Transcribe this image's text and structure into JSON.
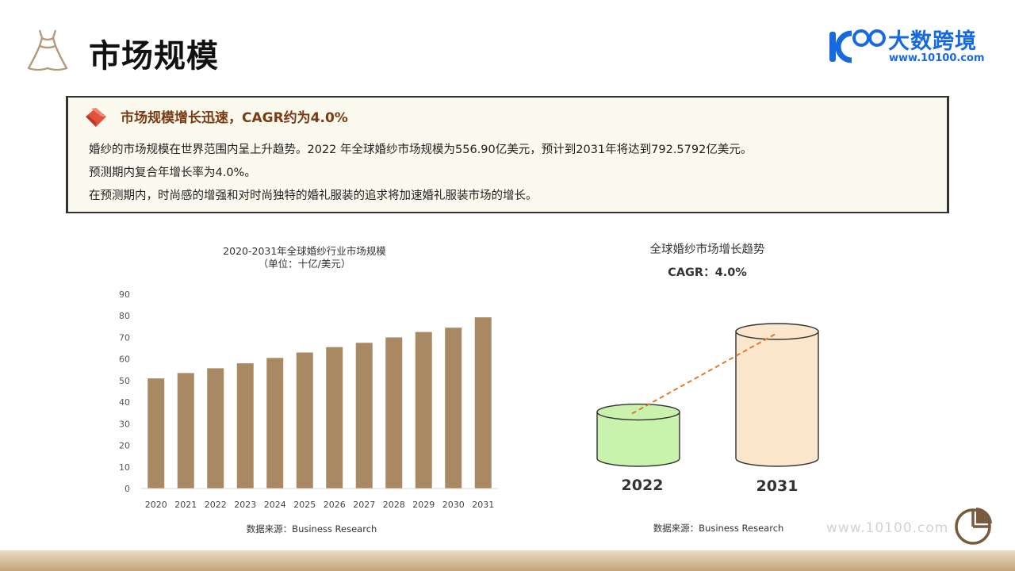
{
  "header": {
    "title": "市场规模",
    "logo_text": "大数跨境",
    "logo_url": "www.10100.com",
    "logo_mark": "10100"
  },
  "callout": {
    "title": "市场规模增长迅速，CAGR约为4.0%",
    "lines": [
      "婚纱的市场规模在世界范围内呈上升趋势。2022 年全球婚纱市场规模为556.90亿美元，预计到2031年将达到792.5792亿美元。",
      "预测期内复合年增长率为4.0%。",
      "在预测期内，时尚感的增强和对时尚独特的婚礼服装的追求将加速婚礼服装市场的增长。"
    ]
  },
  "chart_data": [
    {
      "type": "bar",
      "title": "2020-2031年全球婚纱行业市场规模",
      "subtitle": "（单位：十亿/美元）",
      "categories": [
        "2020",
        "2021",
        "2022",
        "2023",
        "2024",
        "2025",
        "2026",
        "2027",
        "2028",
        "2029",
        "2030",
        "2031"
      ],
      "values": [
        51,
        53.5,
        55.7,
        58,
        60.5,
        63,
        65.5,
        67.5,
        70,
        72.5,
        74.5,
        79.3
      ],
      "yticks": [
        0,
        10,
        20,
        30,
        40,
        50,
        60,
        70,
        80,
        90
      ],
      "ylim": [
        0,
        90
      ],
      "grid": false,
      "bar_color": "#a98864",
      "source": "数据来源：Business Research"
    },
    {
      "type": "cylinder-comparison",
      "title": "全球婚纱市场增长趋势",
      "subtitle": "CAGR：4.0%",
      "categories": [
        "2022",
        "2031"
      ],
      "values": [
        55.69,
        79.26
      ],
      "colors": [
        "#c9f2ad",
        "#fce6cc"
      ],
      "trend_line_color": "#dd7a2e",
      "source": "数据来源：Business Research"
    }
  ],
  "footer": {
    "watermark": "www.10100.com"
  }
}
